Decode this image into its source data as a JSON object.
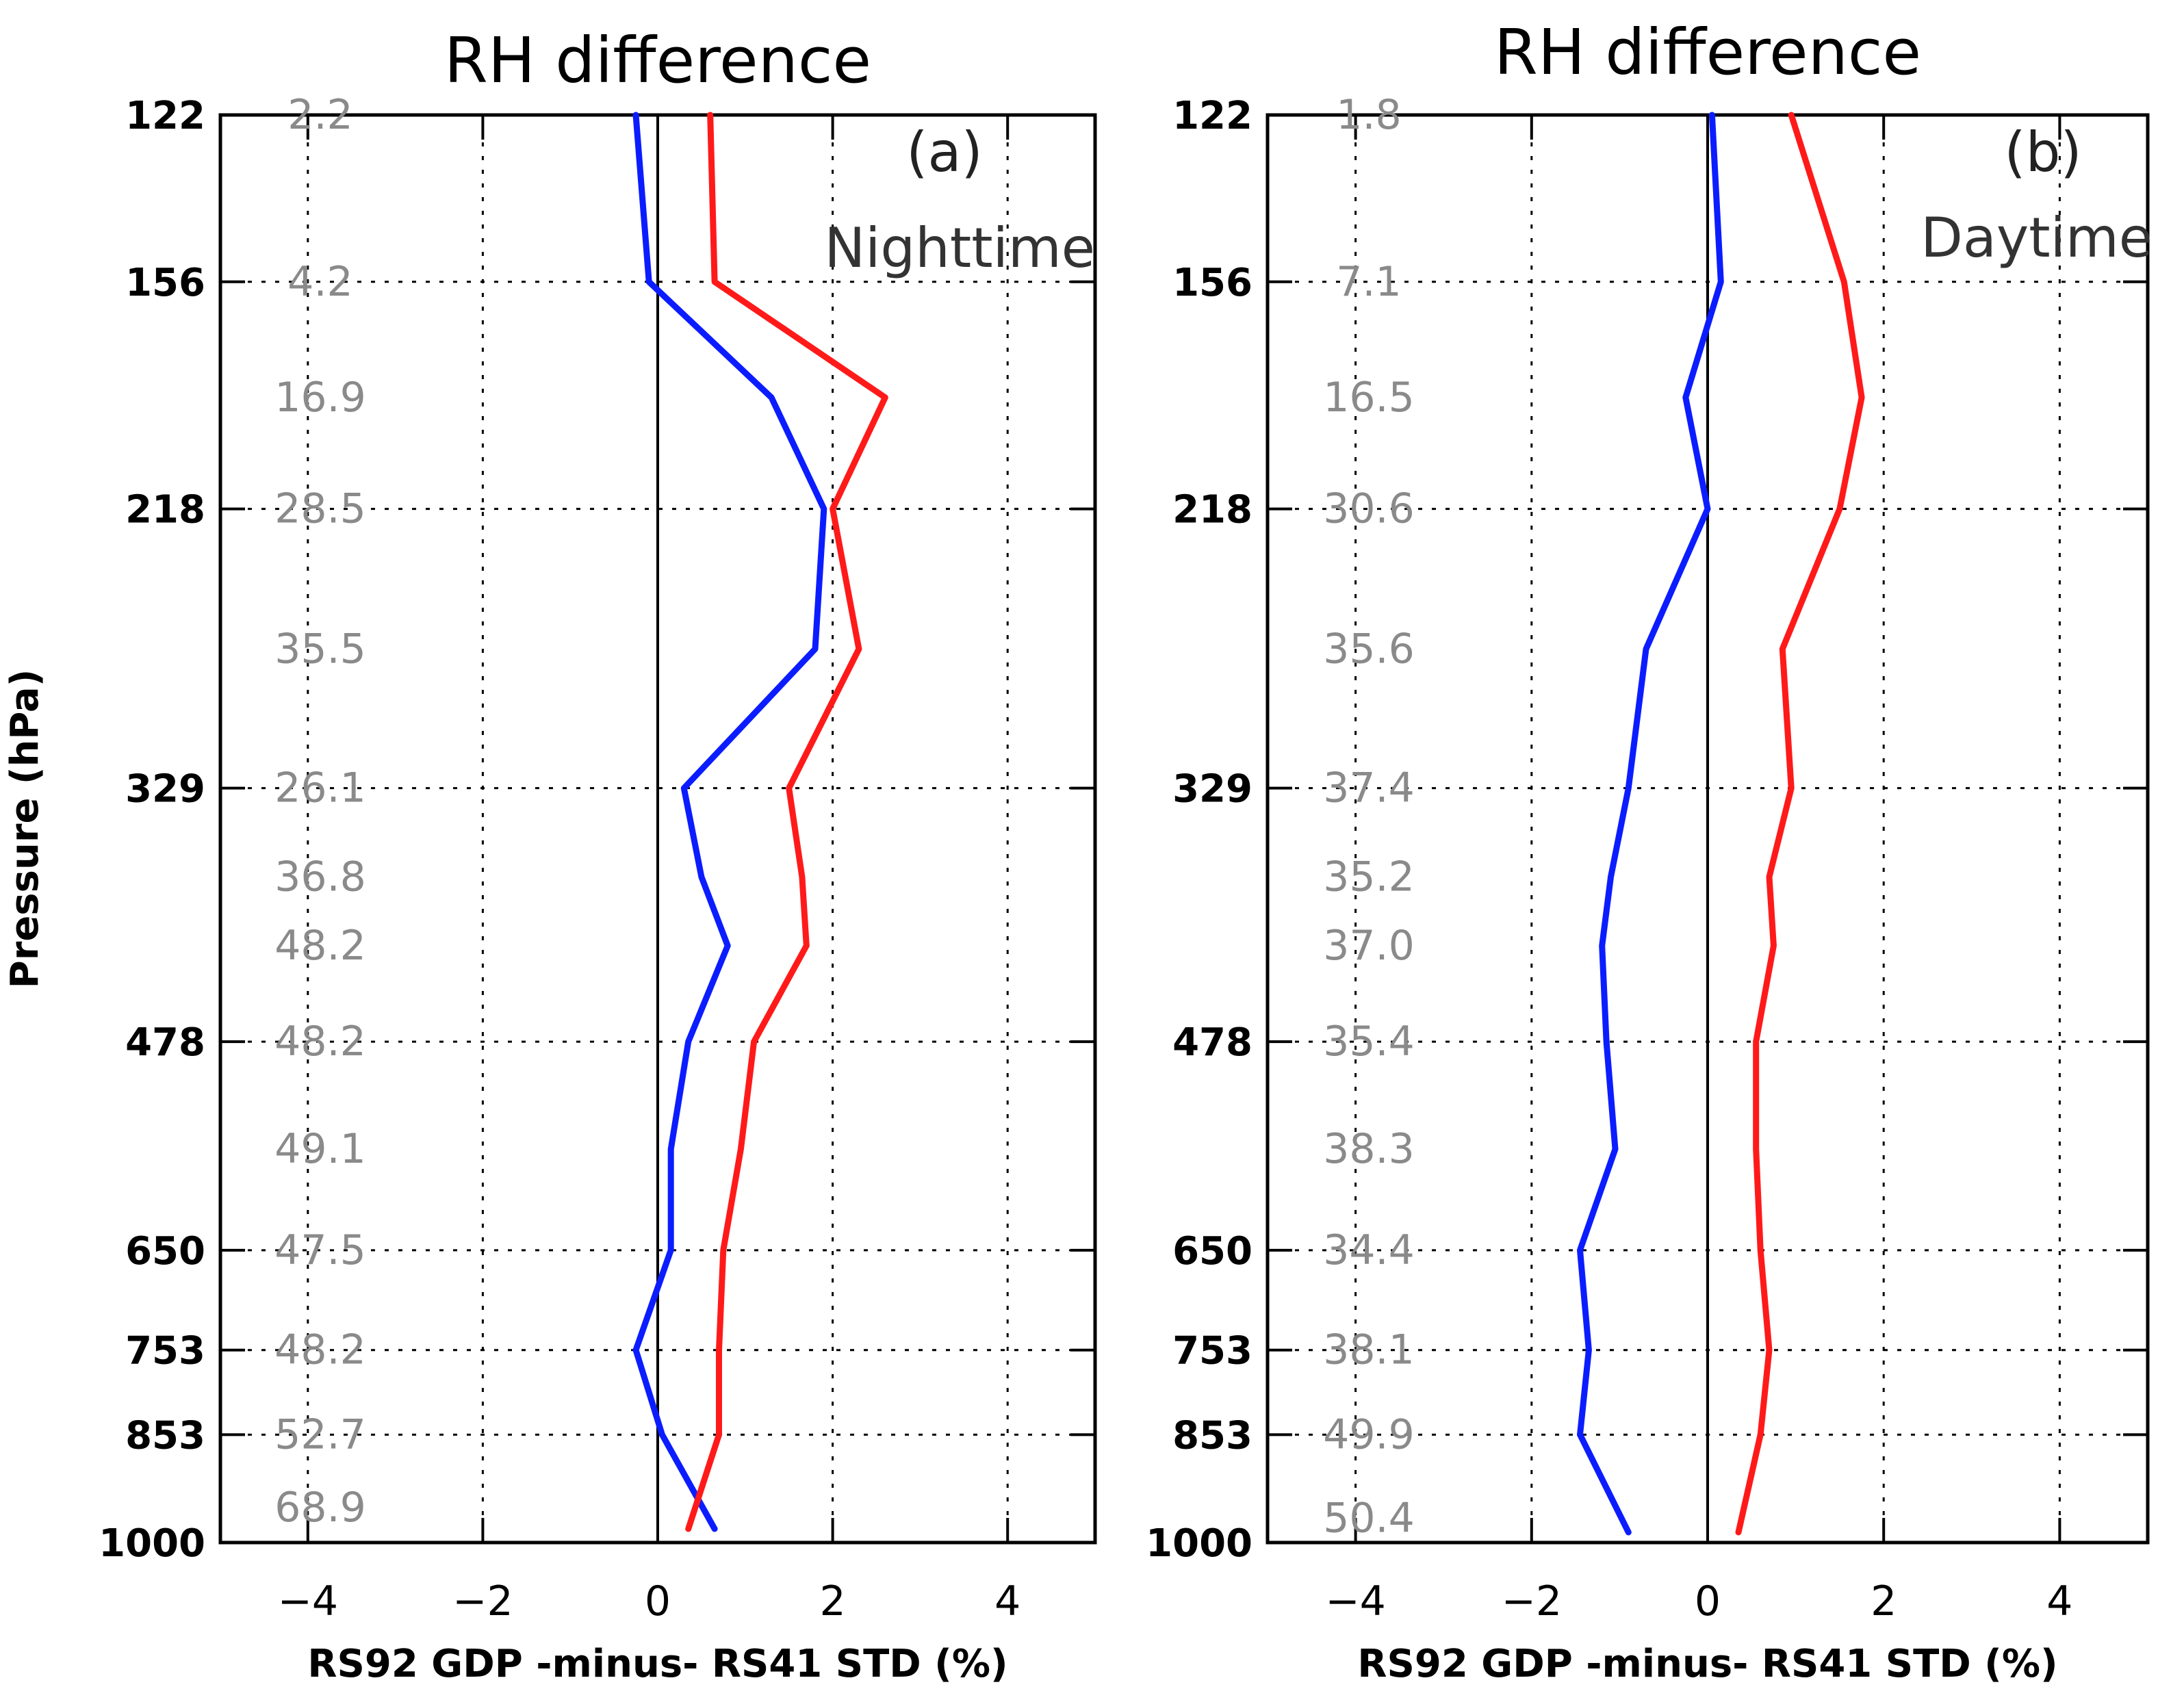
{
  "chart_data": [
    {
      "type": "line",
      "title": "RH difference",
      "panel_label": "(a)",
      "panel_sublabel": "Nighttime",
      "xlabel": "RS92 GDP -minus- RS41 STD (%)",
      "ylabel": "Pressure (hPa)",
      "xlim": [
        -5,
        5
      ],
      "xticks": [
        -4,
        -2,
        0,
        2,
        4
      ],
      "xtick_labels": [
        "−4",
        "−2",
        "0",
        "2",
        "4"
      ],
      "ylim": [
        122,
        1000
      ],
      "yscale": "log",
      "yticks": [
        122,
        156,
        218,
        329,
        478,
        650,
        753,
        853,
        1000
      ],
      "ytick_labels": [
        "122",
        "156",
        "218",
        "329",
        "478",
        "650",
        "753",
        "853",
        "1000"
      ],
      "grid": true,
      "count_labels": [
        {
          "pressure": 122,
          "text": "2.2"
        },
        {
          "pressure": 156,
          "text": "4.2"
        },
        {
          "pressure": 185,
          "text": "16.9"
        },
        {
          "pressure": 218,
          "text": "28.5"
        },
        {
          "pressure": 268,
          "text": "35.5"
        },
        {
          "pressure": 329,
          "text": "26.1"
        },
        {
          "pressure": 375,
          "text": "36.8"
        },
        {
          "pressure": 415,
          "text": "48.2"
        },
        {
          "pressure": 478,
          "text": "48.2"
        },
        {
          "pressure": 560,
          "text": "49.1"
        },
        {
          "pressure": 650,
          "text": "47.5"
        },
        {
          "pressure": 753,
          "text": "48.2"
        },
        {
          "pressure": 853,
          "text": "52.7"
        },
        {
          "pressure": 950,
          "text": "68.9"
        }
      ],
      "series": [
        {
          "name": "blue profile",
          "color": "#0b1dff",
          "x": [
            -0.25,
            -0.1,
            1.3,
            1.9,
            1.8,
            0.3,
            0.5,
            0.8,
            0.35,
            0.15,
            0.15,
            -0.25,
            0.05,
            0.65
          ],
          "pressure": [
            122,
            156,
            185,
            218,
            268,
            329,
            375,
            415,
            478,
            560,
            650,
            753,
            853,
            980
          ]
        },
        {
          "name": "red profile",
          "color": "#ff1a1a",
          "x": [
            0.6,
            0.65,
            2.6,
            2.0,
            2.3,
            1.5,
            1.65,
            1.7,
            1.1,
            0.95,
            0.75,
            0.7,
            0.7,
            0.35
          ],
          "pressure": [
            122,
            156,
            185,
            218,
            268,
            329,
            375,
            415,
            478,
            560,
            650,
            753,
            853,
            980
          ]
        }
      ]
    },
    {
      "type": "line",
      "title": "RH difference",
      "panel_label": "(b)",
      "panel_sublabel": "Daytime",
      "xlabel": "RS92 GDP -minus- RS41 STD (%)",
      "ylabel": "",
      "xlim": [
        -5,
        5
      ],
      "xticks": [
        -4,
        -2,
        0,
        2,
        4
      ],
      "xtick_labels": [
        "−4",
        "−2",
        "0",
        "2",
        "4"
      ],
      "ylim": [
        122,
        1000
      ],
      "yscale": "log",
      "yticks": [
        122,
        156,
        218,
        329,
        478,
        650,
        753,
        853,
        1000
      ],
      "ytick_labels": [
        "122",
        "156",
        "218",
        "329",
        "478",
        "650",
        "753",
        "853",
        "1000"
      ],
      "grid": true,
      "count_labels": [
        {
          "pressure": 122,
          "text": "1.8"
        },
        {
          "pressure": 156,
          "text": "7.1"
        },
        {
          "pressure": 185,
          "text": "16.5"
        },
        {
          "pressure": 218,
          "text": "30.6"
        },
        {
          "pressure": 268,
          "text": "35.6"
        },
        {
          "pressure": 329,
          "text": "37.4"
        },
        {
          "pressure": 375,
          "text": "35.2"
        },
        {
          "pressure": 415,
          "text": "37.0"
        },
        {
          "pressure": 478,
          "text": "35.4"
        },
        {
          "pressure": 560,
          "text": "38.3"
        },
        {
          "pressure": 650,
          "text": "34.4"
        },
        {
          "pressure": 753,
          "text": "38.1"
        },
        {
          "pressure": 853,
          "text": "49.9"
        },
        {
          "pressure": 965,
          "text": "50.4"
        }
      ],
      "series": [
        {
          "name": "blue profile",
          "color": "#0b1dff",
          "x": [
            0.05,
            0.15,
            -0.25,
            0.0,
            -0.7,
            -0.9,
            -1.1,
            -1.2,
            -1.15,
            -1.05,
            -1.45,
            -1.35,
            -1.45,
            -0.9
          ],
          "pressure": [
            122,
            156,
            185,
            218,
            268,
            329,
            375,
            415,
            478,
            560,
            650,
            753,
            853,
            985
          ]
        },
        {
          "name": "red profile",
          "color": "#ff1a1a",
          "x": [
            0.95,
            1.55,
            1.75,
            1.5,
            0.85,
            0.95,
            0.7,
            0.75,
            0.55,
            0.55,
            0.6,
            0.7,
            0.6,
            0.35
          ],
          "pressure": [
            122,
            156,
            185,
            218,
            268,
            329,
            375,
            415,
            478,
            560,
            650,
            753,
            853,
            985
          ]
        }
      ]
    }
  ]
}
